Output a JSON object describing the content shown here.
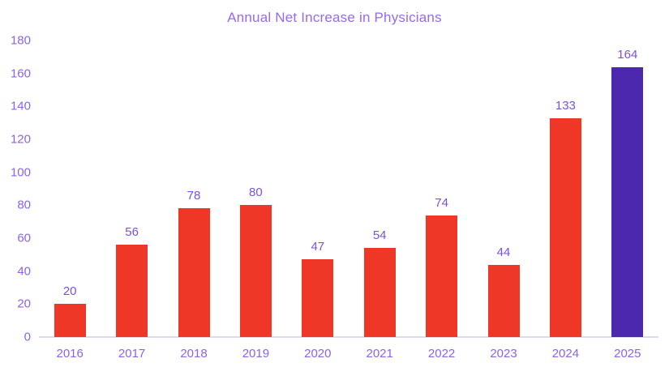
{
  "chart_data": {
    "type": "bar",
    "title": "Annual Net Increase in Physicians",
    "categories": [
      "2016",
      "2017",
      "2018",
      "2019",
      "2020",
      "2021",
      "2022",
      "2023",
      "2024",
      "2025"
    ],
    "values": [
      20,
      56,
      78,
      80,
      47,
      54,
      74,
      44,
      133,
      164
    ],
    "xlabel": "",
    "ylabel": "",
    "ylim": [
      0,
      180
    ],
    "yticks": [
      0,
      20,
      40,
      60,
      80,
      100,
      120,
      140,
      160,
      180
    ],
    "grid": false,
    "legend": false,
    "highlight_index": 9,
    "colors": {
      "bar": "#ee3726",
      "highlight_bar": "#4c28ae",
      "title": "#9669f0",
      "axis_tick_label": "#8a63e8",
      "data_label": "#7b50e2",
      "axis_line": "#ded9f2",
      "background": "#ffffff"
    }
  }
}
